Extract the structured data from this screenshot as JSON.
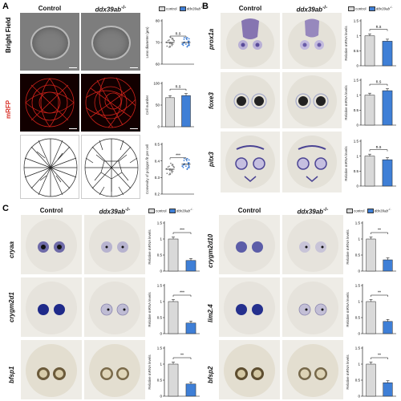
{
  "panels": {
    "A": "A",
    "B": "B",
    "C": "C"
  },
  "headers": {
    "control": "Control",
    "mutant": "ddx39ab",
    "mutant_sup": "-/-"
  },
  "legend": {
    "control": "control",
    "mutant": "ddx39ab"
  },
  "rows_A": {
    "bright_field": "Bright Field",
    "mrfp": "mRFP"
  },
  "genes": {
    "B": [
      "prox1a",
      "foxe3",
      "pitx3"
    ],
    "C_left": [
      "cryaa",
      "crygm2d1",
      "bfsp1"
    ],
    "C_right": [
      "crygm2d10",
      "lim2.4",
      "bfsp2"
    ]
  },
  "colors": {
    "control": "#d9d9d9",
    "mutant": "#3f7fd6",
    "mrfp_label": "#d9352c"
  },
  "chart_data": [
    {
      "type": "scatter",
      "id": "A1",
      "ylabel": "Lens diameter (µm)",
      "categories": [
        "control",
        "ddx39ab"
      ],
      "values": [
        70,
        70
      ],
      "ylim": [
        60,
        80
      ],
      "yticks": [
        60,
        70,
        80
      ],
      "significance": "n.s"
    },
    {
      "type": "bar",
      "id": "A2",
      "ylabel": "Cell number",
      "categories": [
        "control",
        "ddx39ab"
      ],
      "values": [
        67,
        72
      ],
      "ylim": [
        0,
        100
      ],
      "yticks": [
        0,
        50,
        100
      ],
      "significance": "n.s"
    },
    {
      "type": "scatter",
      "id": "A3",
      "ylabel": "Convexity of polygon fit per cell",
      "categories": [
        "control",
        "ddx39ab"
      ],
      "values": [
        0.35,
        0.38
      ],
      "ylim": [
        0.2,
        0.5
      ],
      "yticks": [
        0.2,
        0.3,
        0.4,
        0.5
      ],
      "significance": "***"
    },
    {
      "type": "bar",
      "id": "B1",
      "ylabel": "Relative mRNA levels",
      "categories": [
        "control",
        "ddx39ab"
      ],
      "values": [
        1.0,
        0.82
      ],
      "ylim": [
        0,
        1.5
      ],
      "yticks": [
        0,
        0.5,
        1.0,
        1.5
      ],
      "significance": "n.s"
    },
    {
      "type": "bar",
      "id": "B2",
      "ylabel": "Relative mRNA levels",
      "categories": [
        "control",
        "ddx39ab"
      ],
      "values": [
        1.0,
        1.15
      ],
      "ylim": [
        0,
        1.5
      ],
      "yticks": [
        0,
        0.5,
        1.0,
        1.5
      ],
      "significance": "n.s"
    },
    {
      "type": "bar",
      "id": "B3",
      "ylabel": "Relative mRNA levels",
      "categories": [
        "control",
        "ddx39ab"
      ],
      "values": [
        1.0,
        0.88
      ],
      "ylim": [
        0,
        1.5
      ],
      "yticks": [
        0,
        0.5,
        1.0,
        1.5
      ],
      "significance": "n.s"
    },
    {
      "type": "bar",
      "id": "C1",
      "ylabel": "Relative mRNA levels",
      "categories": [
        "control",
        "ddx39ab"
      ],
      "values": [
        1.0,
        0.33
      ],
      "ylim": [
        0,
        1.5
      ],
      "yticks": [
        0,
        0.5,
        1.0,
        1.5
      ],
      "significance": "***"
    },
    {
      "type": "bar",
      "id": "C2",
      "ylabel": "Relative mRNA levels",
      "categories": [
        "control",
        "ddx39ab"
      ],
      "values": [
        1.0,
        0.33
      ],
      "ylim": [
        0,
        1.5
      ],
      "yticks": [
        0,
        0.5,
        1.0,
        1.5
      ],
      "significance": "***"
    },
    {
      "type": "bar",
      "id": "C3",
      "ylabel": "Relative mRNA levels",
      "categories": [
        "control",
        "ddx39ab"
      ],
      "values": [
        1.0,
        0.38
      ],
      "ylim": [
        0,
        1.5
      ],
      "yticks": [
        0,
        0.5,
        1.0,
        1.5
      ],
      "significance": "**"
    },
    {
      "type": "bar",
      "id": "C4",
      "ylabel": "Relative mRNA levels",
      "categories": [
        "control",
        "ddx39ab"
      ],
      "values": [
        1.0,
        0.35
      ],
      "ylim": [
        0,
        1.5
      ],
      "yticks": [
        0,
        0.5,
        1.0,
        1.5
      ],
      "significance": "**"
    },
    {
      "type": "bar",
      "id": "C5",
      "ylabel": "Relative mRNA levels",
      "categories": [
        "control",
        "ddx39ab"
      ],
      "values": [
        1.0,
        0.38
      ],
      "ylim": [
        0,
        1.5
      ],
      "yticks": [
        0,
        0.5,
        1.0,
        1.5
      ],
      "significance": "**"
    },
    {
      "type": "bar",
      "id": "C6",
      "ylabel": "Relative mRNA levels",
      "categories": [
        "control",
        "ddx39ab"
      ],
      "values": [
        1.0,
        0.42
      ],
      "ylim": [
        0,
        1.5
      ],
      "yticks": [
        0,
        0.5,
        1.0,
        1.5
      ],
      "significance": "**"
    }
  ]
}
